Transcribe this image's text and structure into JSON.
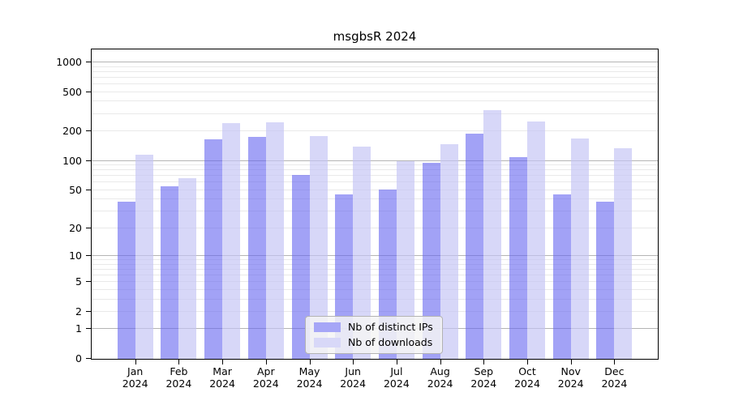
{
  "title": "msgbsR 2024",
  "chart_data": {
    "type": "bar",
    "title": "msgbsR 2024",
    "categories": [
      "Jan",
      "Feb",
      "Mar",
      "Apr",
      "May",
      "Jun",
      "Jul",
      "Aug",
      "Sep",
      "Oct",
      "Nov",
      "Dec"
    ],
    "category_year": "2024",
    "series": [
      {
        "name": "Nb of distinct IPs",
        "values": [
          38,
          55,
          165,
          175,
          72,
          45,
          51,
          95,
          190,
          108,
          45,
          38
        ],
        "color": "rgba(100,100,240,0.6)",
        "swatch_color": "#a6a6f7"
      },
      {
        "name": "Nb of downloads",
        "values": [
          115,
          66,
          240,
          245,
          178,
          140,
          100,
          148,
          330,
          250,
          170,
          135
        ],
        "color": "rgba(196,196,244,0.67)",
        "swatch_color": "#d8d8f8"
      }
    ],
    "yscale": "log10(value+1)",
    "yticks": [
      0,
      1,
      2,
      5,
      10,
      20,
      50,
      100,
      200,
      500,
      1000
    ],
    "major_grid_at": [
      1,
      10,
      100,
      1000
    ],
    "ylim": [
      0,
      1380
    ],
    "grid": {
      "major_color": "#b4b4b4",
      "minor_color": "#e9e9e9"
    },
    "legend_position": "lower center",
    "axis_color": "#000000",
    "background": "#ffffff"
  }
}
